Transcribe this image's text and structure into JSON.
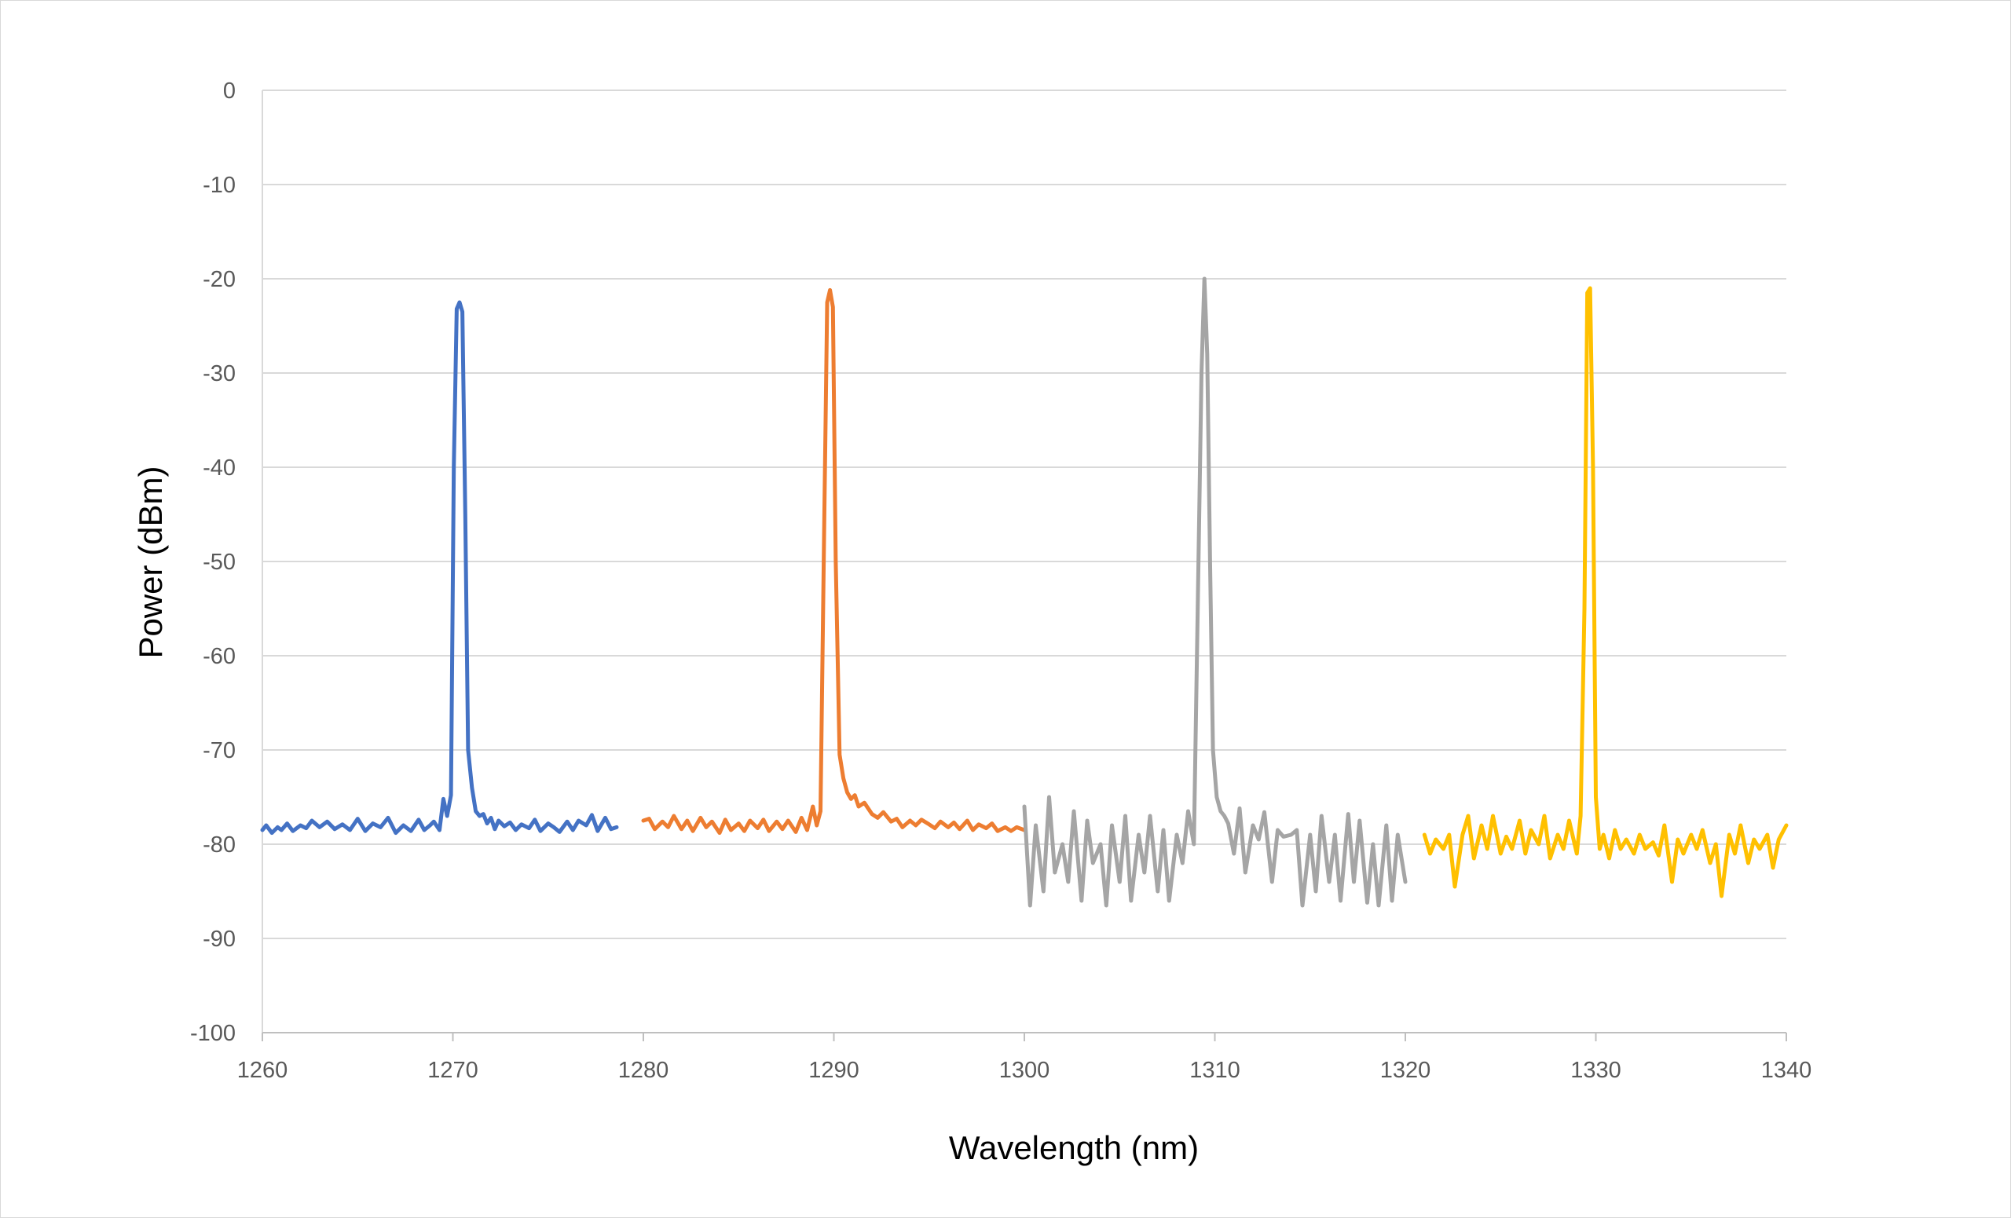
{
  "chart_data": {
    "type": "line",
    "title": "",
    "xlabel": "Wavelength (nm)",
    "ylabel": "Power (dBm)",
    "xlim": [
      1260,
      1340
    ],
    "ylim": [
      -100,
      0
    ],
    "x_ticks": [
      "1260",
      "1270",
      "1280",
      "1290",
      "1300",
      "1310",
      "1320",
      "1330",
      "1340"
    ],
    "y_ticks": [
      "0",
      "-10",
      "-20",
      "-30",
      "-40",
      "-50",
      "-60",
      "-70",
      "-80",
      "-90",
      "-100"
    ],
    "grid": "horizontal",
    "legend": "none",
    "series": [
      {
        "color": "#4472C4",
        "x": [
          1260,
          1260.2,
          1260.5,
          1260.8,
          1261,
          1261.3,
          1261.6,
          1262,
          1262.3,
          1262.6,
          1263,
          1263.4,
          1263.8,
          1264.2,
          1264.6,
          1265,
          1265.4,
          1265.8,
          1266.2,
          1266.6,
          1267,
          1267.4,
          1267.8,
          1268.2,
          1268.5,
          1268.8,
          1269,
          1269.3,
          1269.5,
          1269.7,
          1269.9,
          1270.05,
          1270.2,
          1270.35,
          1270.5,
          1270.65,
          1270.8,
          1271,
          1271.2,
          1271.4,
          1271.6,
          1271.8,
          1272,
          1272.2,
          1272.4,
          1272.7,
          1273,
          1273.3,
          1273.6,
          1274,
          1274.3,
          1274.6,
          1275,
          1275.3,
          1275.6,
          1276,
          1276.3,
          1276.6,
          1277,
          1277.3,
          1277.6,
          1278,
          1278.3,
          1278.6
        ],
        "y": [
          -78.5,
          -78,
          -78.8,
          -78.2,
          -78.5,
          -77.8,
          -78.6,
          -78,
          -78.3,
          -77.5,
          -78.2,
          -77.6,
          -78.4,
          -77.9,
          -78.5,
          -77.3,
          -78.6,
          -77.8,
          -78.2,
          -77.2,
          -78.8,
          -78,
          -78.6,
          -77.4,
          -78.5,
          -78,
          -77.6,
          -78.5,
          -75.2,
          -77,
          -74.8,
          -40,
          -23.2,
          -22.5,
          -23.5,
          -45,
          -70,
          -74,
          -76.5,
          -77,
          -76.8,
          -77.8,
          -77.2,
          -78.4,
          -77.5,
          -78.1,
          -77.7,
          -78.5,
          -77.9,
          -78.3,
          -77.4,
          -78.6,
          -77.8,
          -78.2,
          -78.7,
          -77.6,
          -78.5,
          -77.5,
          -78,
          -76.9,
          -78.6,
          -77.2,
          -78.4,
          -78.2
        ]
      },
      {
        "color": "#ED7D31",
        "x": [
          1280,
          1280.3,
          1280.6,
          1281,
          1281.3,
          1281.6,
          1282,
          1282.3,
          1282.6,
          1283,
          1283.3,
          1283.6,
          1284,
          1284.3,
          1284.6,
          1285,
          1285.3,
          1285.6,
          1286,
          1286.3,
          1286.6,
          1287,
          1287.3,
          1287.6,
          1288,
          1288.3,
          1288.6,
          1288.9,
          1289.1,
          1289.3,
          1289.5,
          1289.65,
          1289.8,
          1289.95,
          1290.1,
          1290.3,
          1290.5,
          1290.7,
          1290.9,
          1291.1,
          1291.3,
          1291.6,
          1292,
          1292.3,
          1292.6,
          1293,
          1293.3,
          1293.6,
          1294,
          1294.3,
          1294.6,
          1295,
          1295.3,
          1295.6,
          1296,
          1296.3,
          1296.6,
          1297,
          1297.3,
          1297.6,
          1298,
          1298.3,
          1298.6,
          1299,
          1299.3,
          1299.6,
          1300
        ],
        "y": [
          -77.5,
          -77.3,
          -78.4,
          -77.6,
          -78.2,
          -77,
          -78.4,
          -77.5,
          -78.6,
          -77.2,
          -78.2,
          -77.6,
          -78.8,
          -77.4,
          -78.5,
          -77.8,
          -78.6,
          -77.5,
          -78.3,
          -77.4,
          -78.6,
          -77.6,
          -78.4,
          -77.5,
          -78.7,
          -77.2,
          -78.5,
          -76,
          -78,
          -76.5,
          -45,
          -22.5,
          -21.2,
          -23,
          -50,
          -70.5,
          -73,
          -74.5,
          -75.2,
          -74.8,
          -76,
          -75.6,
          -76.8,
          -77.2,
          -76.6,
          -77.6,
          -77.3,
          -78.2,
          -77.5,
          -78,
          -77.4,
          -77.9,
          -78.3,
          -77.6,
          -78.2,
          -77.7,
          -78.4,
          -77.5,
          -78.5,
          -77.9,
          -78.3,
          -77.8,
          -78.6,
          -78.2,
          -78.6,
          -78.2,
          -78.5
        ]
      },
      {
        "color": "#A5A5A5",
        "x": [
          1300,
          1300.3,
          1300.6,
          1301,
          1301.3,
          1301.6,
          1302,
          1302.3,
          1302.6,
          1303,
          1303.3,
          1303.6,
          1304,
          1304.3,
          1304.6,
          1305,
          1305.3,
          1305.6,
          1306,
          1306.3,
          1306.6,
          1307,
          1307.3,
          1307.6,
          1308,
          1308.3,
          1308.6,
          1308.9,
          1309.1,
          1309.3,
          1309.45,
          1309.6,
          1309.75,
          1309.9,
          1310.1,
          1310.3,
          1310.5,
          1310.7,
          1311,
          1311.3,
          1311.6,
          1312,
          1312.3,
          1312.6,
          1313,
          1313.3,
          1313.6,
          1314,
          1314.3,
          1314.6,
          1315,
          1315.3,
          1315.6,
          1316,
          1316.3,
          1316.6,
          1317,
          1317.3,
          1317.6,
          1318,
          1318.3,
          1318.6,
          1319,
          1319.3,
          1319.6,
          1320
        ],
        "y": [
          -76,
          -86.5,
          -78,
          -85,
          -75,
          -83,
          -80,
          -84,
          -76.5,
          -86,
          -77.5,
          -82,
          -80,
          -86.5,
          -78,
          -84,
          -77,
          -86,
          -79,
          -83,
          -77,
          -85,
          -78.5,
          -86,
          -79,
          -82,
          -76.5,
          -80,
          -55,
          -30,
          -20,
          -28,
          -50,
          -70,
          -75,
          -76.5,
          -77,
          -77.8,
          -81,
          -76.2,
          -83,
          -78,
          -79.5,
          -76.6,
          -84,
          -78.5,
          -79.2,
          -79,
          -78.5,
          -86.5,
          -79,
          -85,
          -77,
          -84,
          -79,
          -86,
          -76.8,
          -84,
          -77.5,
          -86.2,
          -80,
          -86.5,
          -78,
          -86,
          -79,
          -84
        ]
      },
      {
        "color": "#FFC000",
        "x": [
          1321,
          1321.3,
          1321.6,
          1322,
          1322.3,
          1322.6,
          1323,
          1323.3,
          1323.6,
          1324,
          1324.3,
          1324.6,
          1325,
          1325.3,
          1325.6,
          1326,
          1326.3,
          1326.6,
          1327,
          1327.3,
          1327.6,
          1328,
          1328.3,
          1328.6,
          1329,
          1329.2,
          1329.4,
          1329.55,
          1329.7,
          1329.85,
          1330,
          1330.2,
          1330.4,
          1330.7,
          1331,
          1331.3,
          1331.6,
          1332,
          1332.3,
          1332.6,
          1333,
          1333.3,
          1333.6,
          1334,
          1334.3,
          1334.6,
          1335,
          1335.3,
          1335.6,
          1336,
          1336.3,
          1336.6,
          1337,
          1337.3,
          1337.6,
          1338,
          1338.3,
          1338.6,
          1339,
          1339.3,
          1339.6,
          1340
        ],
        "y": [
          -79,
          -81,
          -79.5,
          -80.5,
          -79,
          -84.5,
          -79,
          -77,
          -81.5,
          -78,
          -80.5,
          -77,
          -81,
          -79.2,
          -80.5,
          -77.5,
          -81,
          -78.5,
          -80,
          -77,
          -81.5,
          -79,
          -80.5,
          -77.5,
          -81,
          -77,
          -55,
          -21.5,
          -21,
          -40,
          -75,
          -80.5,
          -79,
          -81.5,
          -78.5,
          -80.5,
          -79.5,
          -81,
          -79,
          -80.5,
          -79.8,
          -81.2,
          -78,
          -84,
          -79.5,
          -81,
          -79,
          -80.5,
          -78.5,
          -82,
          -80,
          -85.5,
          -79,
          -81,
          -78,
          -82,
          -79.5,
          -80.5,
          -79,
          -82.5,
          -79.5,
          -78
        ]
      }
    ]
  }
}
